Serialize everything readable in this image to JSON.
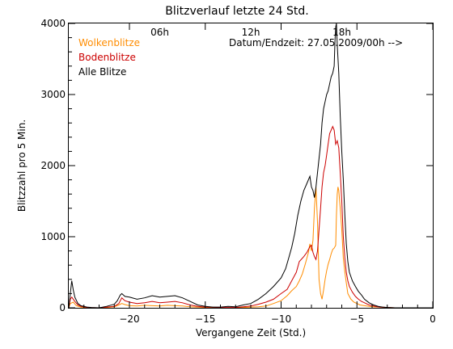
{
  "chart_data": {
    "type": "line",
    "title": "Blitzverlauf letzte 24 Std.",
    "xlabel": "Vergangene Zeit (Std.)",
    "ylabel": "Blitzzahl pro 5 Min.",
    "xlim": [
      -24,
      0
    ],
    "ylim": [
      0,
      4000
    ],
    "x_ticks": [
      -20,
      -15,
      -10,
      -5,
      0
    ],
    "x_tick_labels": [
      "−20",
      "−15",
      "−10",
      "−5",
      "0"
    ],
    "y_ticks": [
      0,
      1000,
      2000,
      3000,
      4000
    ],
    "y_tick_labels": [
      "0",
      "1000",
      "2000",
      "3000",
      "4000"
    ],
    "top_axis_labels": [
      {
        "x": -18,
        "label": "06h"
      },
      {
        "x": -12,
        "label": "12h"
      },
      {
        "x": -6,
        "label": "18h"
      }
    ],
    "annotation": "Datum/Endzeit: 27.05.2009/00h -->",
    "grid": false,
    "legend_position": "top-left",
    "series": [
      {
        "name": "Wolkenblitze",
        "color": "#ff8c00",
        "points": [
          [
            -24,
            0
          ],
          [
            -23.9,
            60
          ],
          [
            -23.7,
            80
          ],
          [
            -23.5,
            30
          ],
          [
            -23.2,
            10
          ],
          [
            -22.8,
            0
          ],
          [
            -22,
            0
          ],
          [
            -21.5,
            5
          ],
          [
            -21,
            15
          ],
          [
            -20.7,
            40
          ],
          [
            -20.5,
            60
          ],
          [
            -20.3,
            45
          ],
          [
            -20,
            30
          ],
          [
            -19.5,
            25
          ],
          [
            -19,
            35
          ],
          [
            -18.5,
            30
          ],
          [
            -18,
            25
          ],
          [
            -17.5,
            35
          ],
          [
            -17,
            30
          ],
          [
            -16.5,
            25
          ],
          [
            -16,
            15
          ],
          [
            -15.5,
            10
          ],
          [
            -15,
            5
          ],
          [
            -14,
            0
          ],
          [
            -13,
            0
          ],
          [
            -12.5,
            5
          ],
          [
            -12,
            10
          ],
          [
            -11.5,
            15
          ],
          [
            -11,
            25
          ],
          [
            -10.5,
            60
          ],
          [
            -10,
            100
          ],
          [
            -9.6,
            170
          ],
          [
            -9.3,
            240
          ],
          [
            -9,
            300
          ],
          [
            -8.8,
            380
          ],
          [
            -8.6,
            480
          ],
          [
            -8.4,
            620
          ],
          [
            -8.2,
            780
          ],
          [
            -8.1,
            900
          ],
          [
            -8,
            800
          ],
          [
            -7.9,
            950
          ],
          [
            -7.8,
            1400
          ],
          [
            -7.7,
            1700
          ],
          [
            -7.6,
            1200
          ],
          [
            -7.5,
            400
          ],
          [
            -7.4,
            200
          ],
          [
            -7.3,
            120
          ],
          [
            -7.2,
            250
          ],
          [
            -7.1,
            400
          ],
          [
            -7,
            520
          ],
          [
            -6.9,
            610
          ],
          [
            -6.8,
            680
          ],
          [
            -6.7,
            760
          ],
          [
            -6.6,
            820
          ],
          [
            -6.5,
            840
          ],
          [
            -6.4,
            880
          ],
          [
            -6.35,
            1300
          ],
          [
            -6.3,
            1600
          ],
          [
            -6.25,
            1700
          ],
          [
            -6.2,
            1650
          ],
          [
            -6.1,
            1400
          ],
          [
            -6,
            1100
          ],
          [
            -5.9,
            700
          ],
          [
            -5.8,
            500
          ],
          [
            -5.7,
            350
          ],
          [
            -5.6,
            200
          ],
          [
            -5.4,
            120
          ],
          [
            -5.2,
            80
          ],
          [
            -5,
            60
          ],
          [
            -4.8,
            40
          ],
          [
            -4.5,
            30
          ],
          [
            -4,
            15
          ],
          [
            -3.5,
            10
          ],
          [
            -3,
            5
          ],
          [
            -2.5,
            0
          ],
          [
            -2,
            0
          ],
          [
            0,
            0
          ]
        ]
      },
      {
        "name": "Bodenblitze",
        "color": "#cc0000",
        "points": [
          [
            -24,
            0
          ],
          [
            -23.9,
            120
          ],
          [
            -23.8,
            150
          ],
          [
            -23.6,
            90
          ],
          [
            -23.4,
            40
          ],
          [
            -23.2,
            20
          ],
          [
            -22.8,
            5
          ],
          [
            -22,
            0
          ],
          [
            -21.5,
            10
          ],
          [
            -21,
            20
          ],
          [
            -20.7,
            60
          ],
          [
            -20.5,
            140
          ],
          [
            -20.3,
            100
          ],
          [
            -20,
            80
          ],
          [
            -19.5,
            60
          ],
          [
            -19,
            70
          ],
          [
            -18.5,
            90
          ],
          [
            -18,
            70
          ],
          [
            -17.5,
            80
          ],
          [
            -17,
            90
          ],
          [
            -16.5,
            70
          ],
          [
            -16,
            40
          ],
          [
            -15.5,
            20
          ],
          [
            -15,
            10
          ],
          [
            -14,
            5
          ],
          [
            -13,
            5
          ],
          [
            -12.5,
            15
          ],
          [
            -12,
            25
          ],
          [
            -11.5,
            50
          ],
          [
            -11,
            80
          ],
          [
            -10.5,
            120
          ],
          [
            -10,
            200
          ],
          [
            -9.6,
            260
          ],
          [
            -9.3,
            380
          ],
          [
            -9,
            500
          ],
          [
            -8.8,
            650
          ],
          [
            -8.5,
            720
          ],
          [
            -8.3,
            780
          ],
          [
            -8.1,
            860
          ],
          [
            -8,
            880
          ],
          [
            -7.9,
            780
          ],
          [
            -7.8,
            720
          ],
          [
            -7.7,
            680
          ],
          [
            -7.6,
            800
          ],
          [
            -7.5,
            1100
          ],
          [
            -7.4,
            1400
          ],
          [
            -7.3,
            1700
          ],
          [
            -7.2,
            1900
          ],
          [
            -7.1,
            2000
          ],
          [
            -7,
            2150
          ],
          [
            -6.9,
            2300
          ],
          [
            -6.8,
            2450
          ],
          [
            -6.7,
            2500
          ],
          [
            -6.6,
            2550
          ],
          [
            -6.5,
            2500
          ],
          [
            -6.4,
            2300
          ],
          [
            -6.3,
            2350
          ],
          [
            -6.2,
            2250
          ],
          [
            -6.1,
            1900
          ],
          [
            -6,
            1500
          ],
          [
            -5.9,
            1000
          ],
          [
            -5.8,
            700
          ],
          [
            -5.7,
            500
          ],
          [
            -5.6,
            380
          ],
          [
            -5.5,
            300
          ],
          [
            -5.3,
            220
          ],
          [
            -5.1,
            160
          ],
          [
            -4.9,
            120
          ],
          [
            -4.7,
            90
          ],
          [
            -4.5,
            70
          ],
          [
            -4.2,
            40
          ],
          [
            -3.8,
            20
          ],
          [
            -3.5,
            10
          ],
          [
            -3,
            5
          ],
          [
            -2.5,
            0
          ],
          [
            0,
            0
          ]
        ]
      },
      {
        "name": "Alle Blitze",
        "color": "#000000",
        "points": [
          [
            -24,
            0
          ],
          [
            -23.9,
            200
          ],
          [
            -23.8,
            380
          ],
          [
            -23.7,
            250
          ],
          [
            -23.6,
            150
          ],
          [
            -23.4,
            60
          ],
          [
            -23.2,
            30
          ],
          [
            -22.8,
            10
          ],
          [
            -22.5,
            5
          ],
          [
            -22,
            0
          ],
          [
            -21.5,
            20
          ],
          [
            -21,
            50
          ],
          [
            -20.8,
            100
          ],
          [
            -20.6,
            180
          ],
          [
            -20.5,
            200
          ],
          [
            -20.3,
            160
          ],
          [
            -20,
            150
          ],
          [
            -19.5,
            120
          ],
          [
            -19,
            140
          ],
          [
            -18.5,
            170
          ],
          [
            -18,
            150
          ],
          [
            -17.5,
            160
          ],
          [
            -17,
            170
          ],
          [
            -16.5,
            140
          ],
          [
            -16,
            90
          ],
          [
            -15.5,
            40
          ],
          [
            -15,
            20
          ],
          [
            -14.5,
            10
          ],
          [
            -14,
            10
          ],
          [
            -13.5,
            20
          ],
          [
            -13,
            15
          ],
          [
            -12.5,
            40
          ],
          [
            -12,
            60
          ],
          [
            -11.5,
            120
          ],
          [
            -11,
            200
          ],
          [
            -10.5,
            300
          ],
          [
            -10,
            420
          ],
          [
            -9.7,
            550
          ],
          [
            -9.5,
            700
          ],
          [
            -9.3,
            850
          ],
          [
            -9.1,
            1050
          ],
          [
            -8.9,
            1300
          ],
          [
            -8.7,
            1500
          ],
          [
            -8.5,
            1650
          ],
          [
            -8.3,
            1750
          ],
          [
            -8.1,
            1850
          ],
          [
            -8,
            1700
          ],
          [
            -7.9,
            1650
          ],
          [
            -7.8,
            1550
          ],
          [
            -7.7,
            1700
          ],
          [
            -7.6,
            1900
          ],
          [
            -7.5,
            2100
          ],
          [
            -7.4,
            2300
          ],
          [
            -7.3,
            2600
          ],
          [
            -7.2,
            2800
          ],
          [
            -7.1,
            2900
          ],
          [
            -7,
            3000
          ],
          [
            -6.9,
            3050
          ],
          [
            -6.8,
            3150
          ],
          [
            -6.7,
            3250
          ],
          [
            -6.6,
            3300
          ],
          [
            -6.5,
            3400
          ],
          [
            -6.45,
            3750
          ],
          [
            -6.4,
            3950
          ],
          [
            -6.35,
            4000
          ],
          [
            -6.3,
            3700
          ],
          [
            -6.2,
            3300
          ],
          [
            -6.1,
            2700
          ],
          [
            -6,
            2200
          ],
          [
            -5.9,
            1800
          ],
          [
            -5.8,
            1300
          ],
          [
            -5.7,
            900
          ],
          [
            -5.6,
            650
          ],
          [
            -5.5,
            500
          ],
          [
            -5.3,
            380
          ],
          [
            -5.1,
            300
          ],
          [
            -4.9,
            230
          ],
          [
            -4.7,
            180
          ],
          [
            -4.5,
            120
          ],
          [
            -4.2,
            70
          ],
          [
            -3.9,
            40
          ],
          [
            -3.6,
            20
          ],
          [
            -3.3,
            10
          ],
          [
            -3,
            5
          ],
          [
            -2.5,
            0
          ],
          [
            0,
            0
          ]
        ]
      }
    ]
  }
}
